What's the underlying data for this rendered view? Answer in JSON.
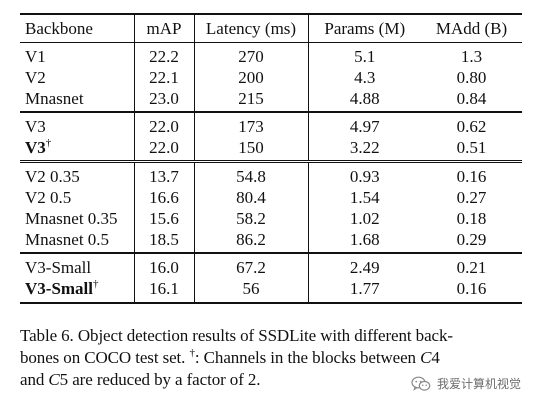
{
  "table": {
    "headers": [
      "Backbone",
      "mAP",
      "Latency (ms)",
      "Params (M)",
      "MAdd (B)"
    ],
    "groups": [
      {
        "rows": [
          {
            "backbone": "V1",
            "map": "22.2",
            "latency": "270",
            "params": "5.1",
            "madd": "1.3"
          },
          {
            "backbone": "V2",
            "map": "22.1",
            "latency": "200",
            "params": "4.3",
            "madd": "0.80"
          },
          {
            "backbone": "Mnasnet",
            "map": "23.0",
            "latency": "215",
            "params": "4.88",
            "madd": "0.84"
          }
        ]
      },
      {
        "rows": [
          {
            "backbone": "V3",
            "map": "22.0",
            "latency": "173",
            "params": "4.97",
            "madd": "0.62"
          },
          {
            "backbone": "V3",
            "dagger": "†",
            "bold": true,
            "map": "22.0",
            "latency": "150",
            "params": "3.22",
            "madd": "0.51"
          }
        ]
      },
      {
        "rows": [
          {
            "backbone": "V2 0.35",
            "map": "13.7",
            "latency": "54.8",
            "params": "0.93",
            "madd": "0.16"
          },
          {
            "backbone": "V2 0.5",
            "map": "16.6",
            "latency": "80.4",
            "params": "1.54",
            "madd": "0.27"
          },
          {
            "backbone": "Mnasnet 0.35",
            "map": "15.6",
            "latency": "58.2",
            "params": "1.02",
            "madd": "0.18"
          },
          {
            "backbone": "Mnasnet 0.5",
            "map": "18.5",
            "latency": "86.2",
            "params": "1.68",
            "madd": "0.29"
          }
        ]
      },
      {
        "rows": [
          {
            "backbone": "V3-Small",
            "map": "16.0",
            "latency": "67.2",
            "params": "2.49",
            "madd": "0.21"
          },
          {
            "backbone": "V3-Small",
            "dagger": "†",
            "bold": true,
            "map": "16.1",
            "latency": "56",
            "params": "1.77",
            "madd": "0.16"
          }
        ]
      }
    ]
  },
  "caption": {
    "line1": "Table 6. Object detection results of SSDLite with different back-",
    "line2_pre": "bones on COCO test set.",
    "line2_dagger": "†",
    "line2_post": ": Channels in the blocks between",
    "line2_math": "C",
    "line2_num": "4",
    "line3_pre": "and",
    "line3_math": "C",
    "line3_num": "5",
    "line3_post": "are reduced by a factor of 2."
  },
  "watermark": {
    "text": "我爱计算机视觉",
    "icon": "wechat-icon"
  }
}
